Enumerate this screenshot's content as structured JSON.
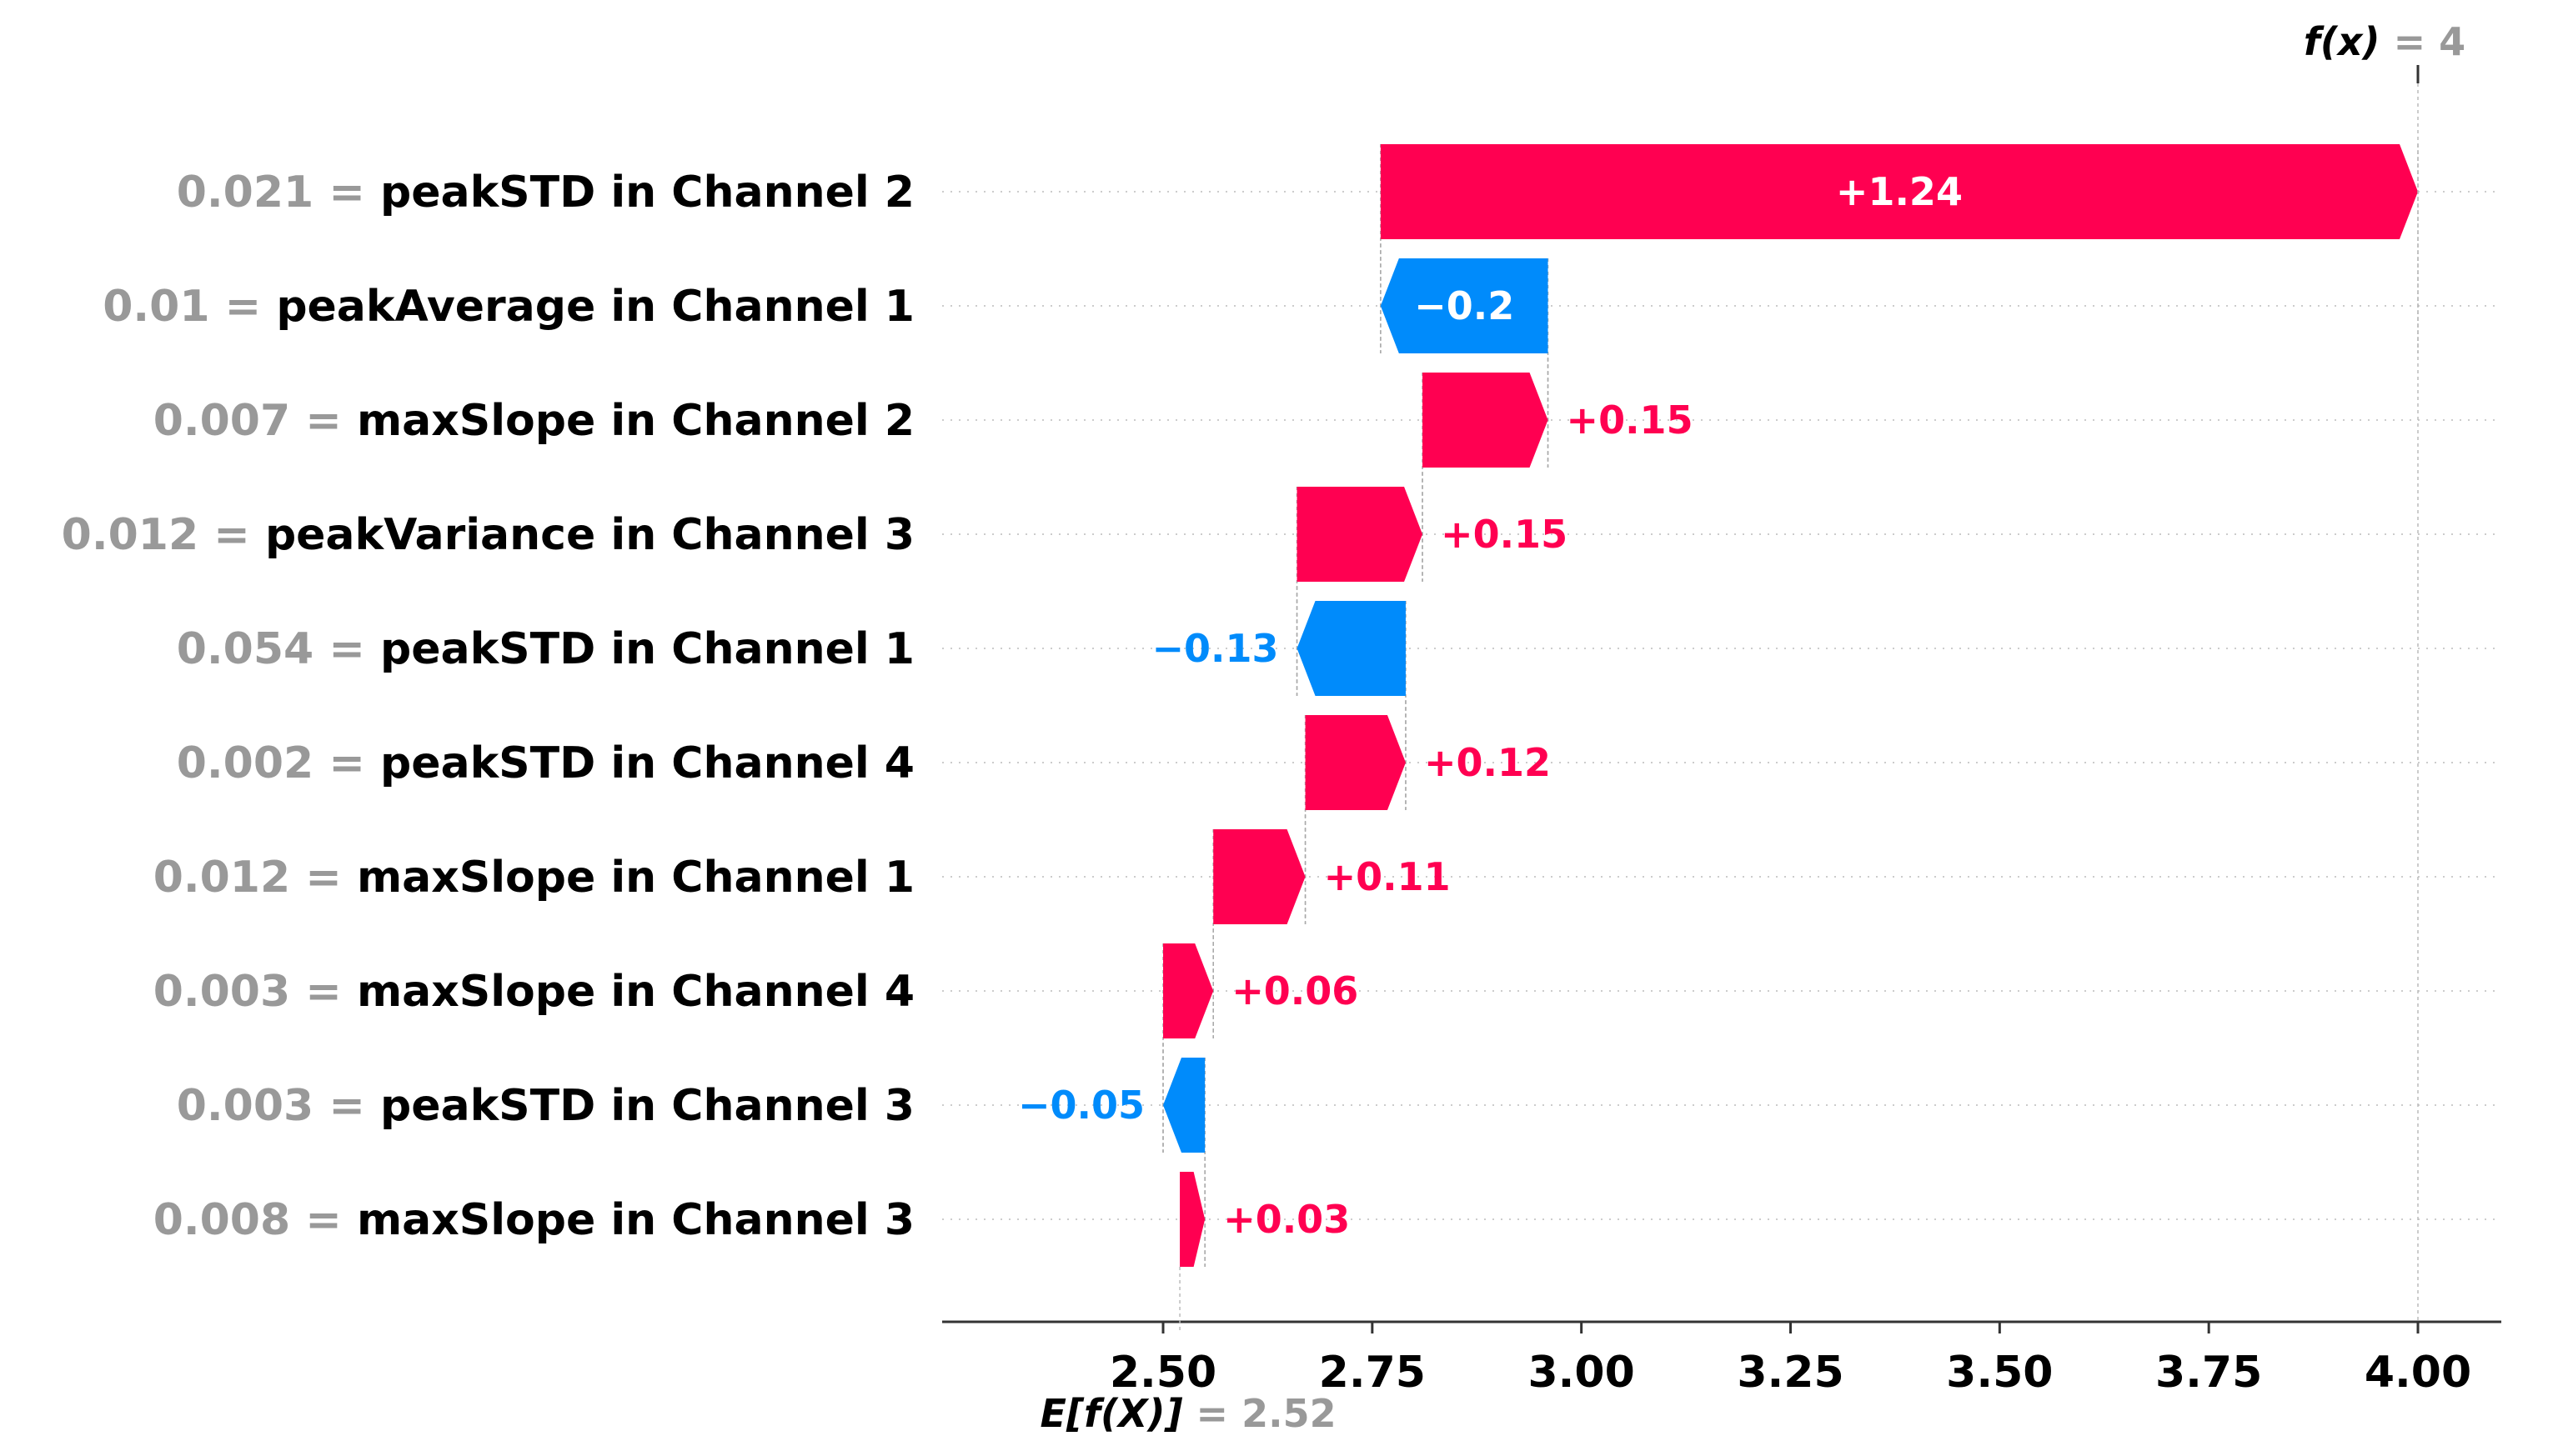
{
  "chart_data": {
    "type": "waterfall",
    "base_value": 2.52,
    "output_value": 4,
    "output_label": {
      "fn": "f(x)",
      "eq": " = 4"
    },
    "base_label": {
      "fn": "E[f(X)]",
      "eq": " = 2.52"
    },
    "x_ticks": [
      2.5,
      2.75,
      3.0,
      3.25,
      3.5,
      3.75,
      4.0
    ],
    "x_tick_labels": [
      "2.50",
      "2.75",
      "3.00",
      "3.25",
      "3.50",
      "3.75",
      "4.00"
    ],
    "xlim": [
      2.28,
      4.1
    ],
    "features": [
      {
        "value": "0.021",
        "name": "peakSTD in Channel 2",
        "contribution": 1.24,
        "label": "+1.24"
      },
      {
        "value": "0.01",
        "name": "peakAverage in Channel 1",
        "contribution": -0.2,
        "label": "−0.2"
      },
      {
        "value": "0.007",
        "name": "maxSlope in Channel 2",
        "contribution": 0.15,
        "label": "+0.15"
      },
      {
        "value": "0.012",
        "name": "peakVariance in Channel 3",
        "contribution": 0.15,
        "label": "+0.15"
      },
      {
        "value": "0.054",
        "name": "peakSTD in Channel 1",
        "contribution": -0.13,
        "label": "−0.13"
      },
      {
        "value": "0.002",
        "name": "peakSTD in Channel 4",
        "contribution": 0.12,
        "label": "+0.12"
      },
      {
        "value": "0.012",
        "name": "maxSlope in Channel 1",
        "contribution": 0.11,
        "label": "+0.11"
      },
      {
        "value": "0.003",
        "name": "maxSlope in Channel 4",
        "contribution": 0.06,
        "label": "+0.06"
      },
      {
        "value": "0.003",
        "name": "peakSTD in Channel 3",
        "contribution": -0.05,
        "label": "−0.05"
      },
      {
        "value": "0.008",
        "name": "maxSlope in Channel 3",
        "contribution": 0.03,
        "label": "+0.03"
      }
    ],
    "colors": {
      "positive": "#ff0051",
      "negative": "#008bfb",
      "muted": "#999999"
    }
  }
}
